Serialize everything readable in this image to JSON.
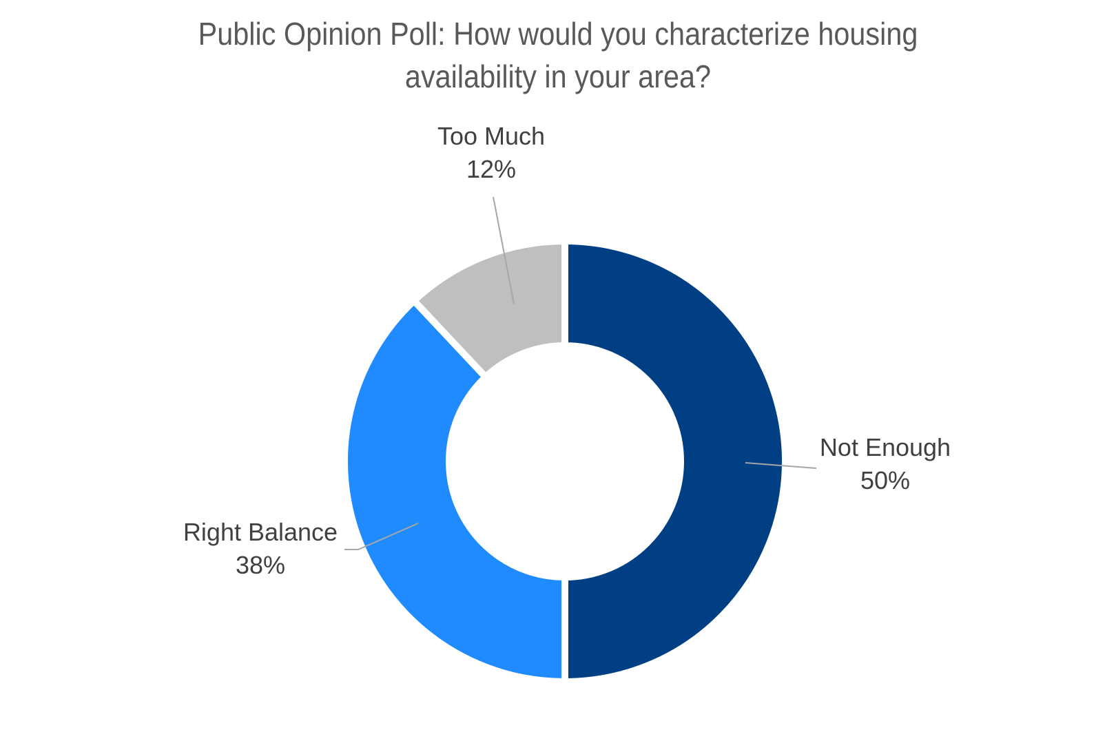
{
  "chart_data": {
    "type": "pie",
    "donut": true,
    "title": "Public Opinion Poll: How would you characterize housing availability in your area?",
    "title_lines": [
      "Public Opinion Poll: How would you characterize housing",
      "availability in your area?"
    ],
    "slices": [
      {
        "name": "Not Enough",
        "value": 50,
        "label": "50%",
        "color": "#003f83"
      },
      {
        "name": "Right Balance",
        "value": 38,
        "label": "38%",
        "color": "#1f8bff"
      },
      {
        "name": "Too Much",
        "value": 12,
        "label": "12%",
        "color": "#bebfc1"
      }
    ],
    "legend": "none",
    "background": "#ffffff",
    "separator_color": "#ffffff"
  }
}
